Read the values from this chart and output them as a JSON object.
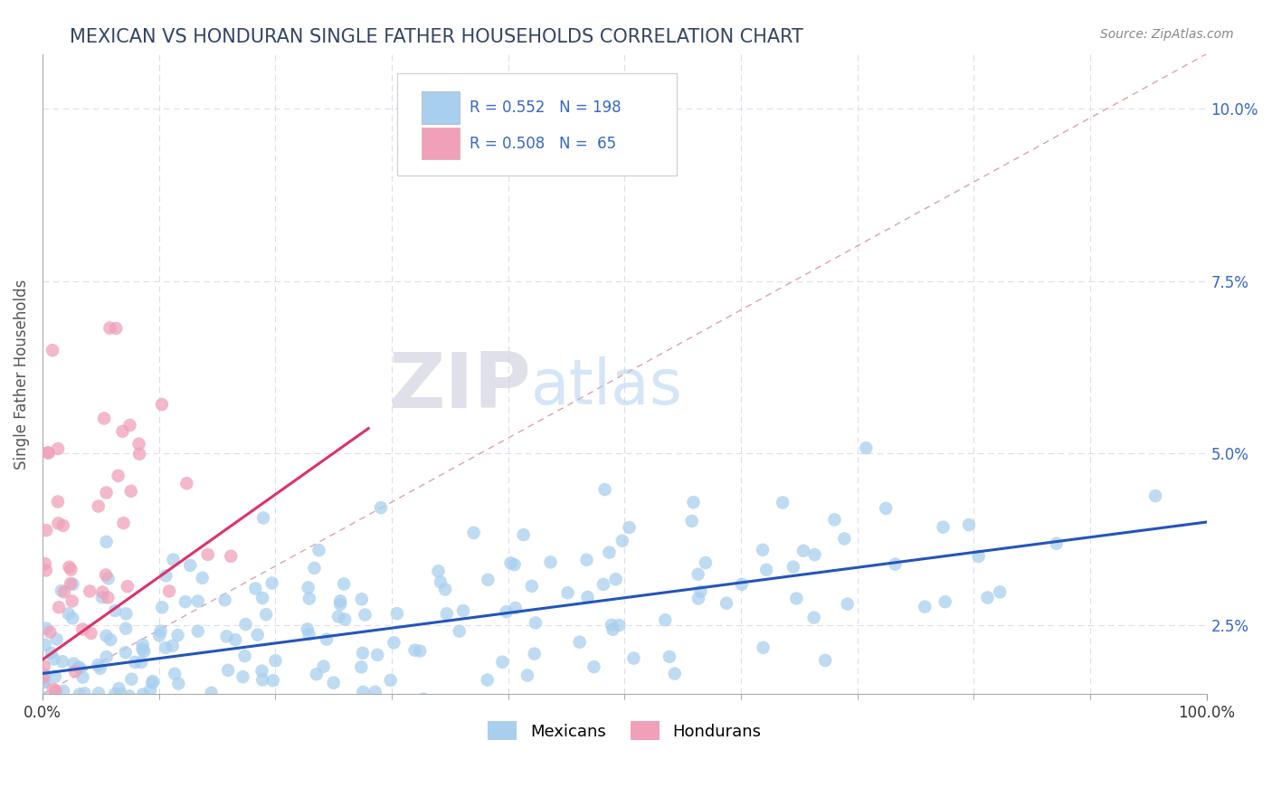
{
  "title": "MEXICAN VS HONDURAN SINGLE FATHER HOUSEHOLDS CORRELATION CHART",
  "source_text": "Source: ZipAtlas.com",
  "ylabel": "Single Father Households",
  "xlim": [
    0.0,
    1.0
  ],
  "ylim": [
    0.015,
    0.108
  ],
  "y_tick_labels_positions": [
    0.025,
    0.05,
    0.075,
    0.1
  ],
  "y_tick_labels": [
    "2.5%",
    "5.0%",
    "7.5%",
    "10.0%"
  ],
  "blue_R": 0.552,
  "blue_N": 198,
  "pink_R": 0.508,
  "pink_N": 65,
  "blue_color": "#A8CFEE",
  "pink_color": "#F0A0B8",
  "blue_line_color": "#2255BB",
  "pink_line_color": "#DD3366",
  "diagonal_color": "#E0A0A8",
  "title_color": "#334466",
  "legend_text_color": "#3366CC",
  "background_color": "#FFFFFF",
  "grid_color": "#DDDDEE",
  "seed": 42,
  "blue_slope": 0.022,
  "blue_intercept": 0.018,
  "pink_slope": 0.12,
  "pink_intercept": 0.02
}
